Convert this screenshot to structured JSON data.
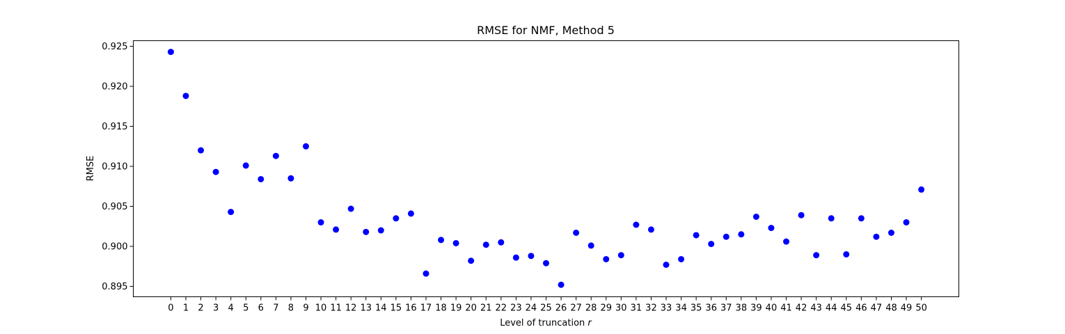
{
  "chart_data": {
    "type": "scatter",
    "title": "RMSE for NMF, Method 5",
    "xlabel": "Level of truncation",
    "xlabel_var": "r",
    "ylabel": "RMSE",
    "marker_color": "#0000ff",
    "xlim": [
      -2.5,
      52.5
    ],
    "ylim": [
      0.8937,
      0.9257
    ],
    "grid": false,
    "x": [
      0,
      1,
      2,
      3,
      4,
      5,
      6,
      7,
      8,
      9,
      10,
      11,
      12,
      13,
      14,
      15,
      16,
      17,
      18,
      19,
      20,
      21,
      22,
      23,
      24,
      25,
      26,
      27,
      28,
      29,
      30,
      31,
      32,
      33,
      34,
      35,
      36,
      37,
      38,
      39,
      40,
      41,
      42,
      43,
      44,
      45,
      46,
      47,
      48,
      49,
      50
    ],
    "y": [
      0.9243,
      0.9188,
      0.912,
      0.9093,
      0.9043,
      0.9101,
      0.9084,
      0.9113,
      0.9085,
      0.9125,
      0.903,
      0.9021,
      0.9047,
      0.9018,
      0.902,
      0.9035,
      0.9041,
      0.8966,
      0.9008,
      0.9004,
      0.8982,
      0.9002,
      0.9005,
      0.8986,
      0.8988,
      0.8979,
      0.8952,
      0.9017,
      0.9001,
      0.8984,
      0.8989,
      0.9027,
      0.9021,
      0.8977,
      0.8984,
      0.9014,
      0.9003,
      0.9012,
      0.9015,
      0.9037,
      0.9023,
      0.9006,
      0.9039,
      0.8989,
      0.9035,
      0.899,
      0.9035,
      0.9012,
      0.9017,
      0.903,
      0.9071
    ],
    "xticks": [
      "0",
      "1",
      "2",
      "3",
      "4",
      "5",
      "6",
      "7",
      "8",
      "9",
      "10",
      "11",
      "12",
      "13",
      "14",
      "15",
      "16",
      "17",
      "18",
      "19",
      "20",
      "21",
      "22",
      "23",
      "24",
      "25",
      "26",
      "27",
      "28",
      "29",
      "30",
      "31",
      "32",
      "33",
      "34",
      "35",
      "36",
      "37",
      "38",
      "39",
      "40",
      "41",
      "42",
      "43",
      "44",
      "45",
      "46",
      "47",
      "48",
      "49",
      "50"
    ],
    "yticks": [
      0.895,
      0.9,
      0.905,
      0.91,
      0.915,
      0.92,
      0.925
    ],
    "ytick_labels": [
      "0.895",
      "0.900",
      "0.905",
      "0.910",
      "0.915",
      "0.920",
      "0.925"
    ]
  }
}
